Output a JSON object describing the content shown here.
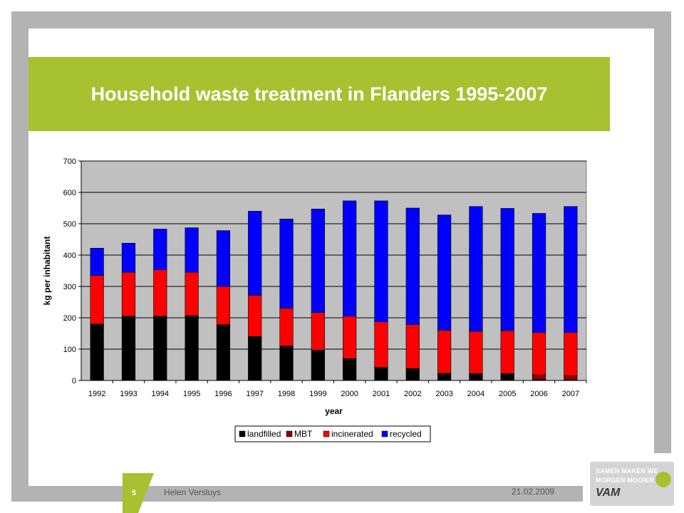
{
  "slide": {
    "title": "Household waste treatment in Flanders 1995-2007",
    "page_number": "5",
    "author": "Helen Versluys",
    "date": "21.02.2009",
    "logo_line1": "SAMEN MAKEN WE",
    "logo_line2": "MORGEN MOOIER",
    "logo_mark": "VAM"
  },
  "colors": {
    "accent_green": "#a7c130",
    "frame_grey": "#b3b3b3",
    "plot_background": "#c0c0c0",
    "landfilled": "#000000",
    "MBT": "#8b0000",
    "incinerated": "#ff0000",
    "recycled": "#0000ff"
  },
  "chart_data": {
    "type": "bar",
    "stacked": true,
    "title": "",
    "xlabel": "year",
    "ylabel": "kg per inhabitant",
    "ylim": [
      0,
      700
    ],
    "yticks": [
      0,
      100,
      200,
      300,
      400,
      500,
      600,
      700
    ],
    "grid": true,
    "legend_position": "bottom",
    "categories": [
      "1992",
      "1993",
      "1994",
      "1995",
      "1996",
      "1997",
      "1998",
      "1999",
      "2000",
      "2001",
      "2002",
      "2003",
      "2004",
      "2005",
      "2006",
      "2007"
    ],
    "series": [
      {
        "name": "landfilled",
        "color": "#000000",
        "values": [
          180,
          205,
          205,
          207,
          178,
          140,
          110,
          97,
          70,
          42,
          38,
          23,
          22,
          22,
          3,
          2
        ]
      },
      {
        "name": "MBT",
        "color": "#8b0000",
        "values": [
          0,
          0,
          0,
          0,
          0,
          0,
          0,
          0,
          0,
          0,
          0,
          0,
          0,
          0,
          15,
          13
        ]
      },
      {
        "name": "incinerated",
        "color": "#ff0000",
        "values": [
          155,
          140,
          148,
          138,
          122,
          132,
          120,
          120,
          135,
          145,
          140,
          137,
          135,
          137,
          135,
          138
        ]
      },
      {
        "name": "recycled",
        "color": "#0000ff",
        "values": [
          87,
          93,
          130,
          142,
          178,
          268,
          285,
          330,
          368,
          386,
          372,
          368,
          398,
          390,
          380,
          402
        ]
      }
    ]
  }
}
